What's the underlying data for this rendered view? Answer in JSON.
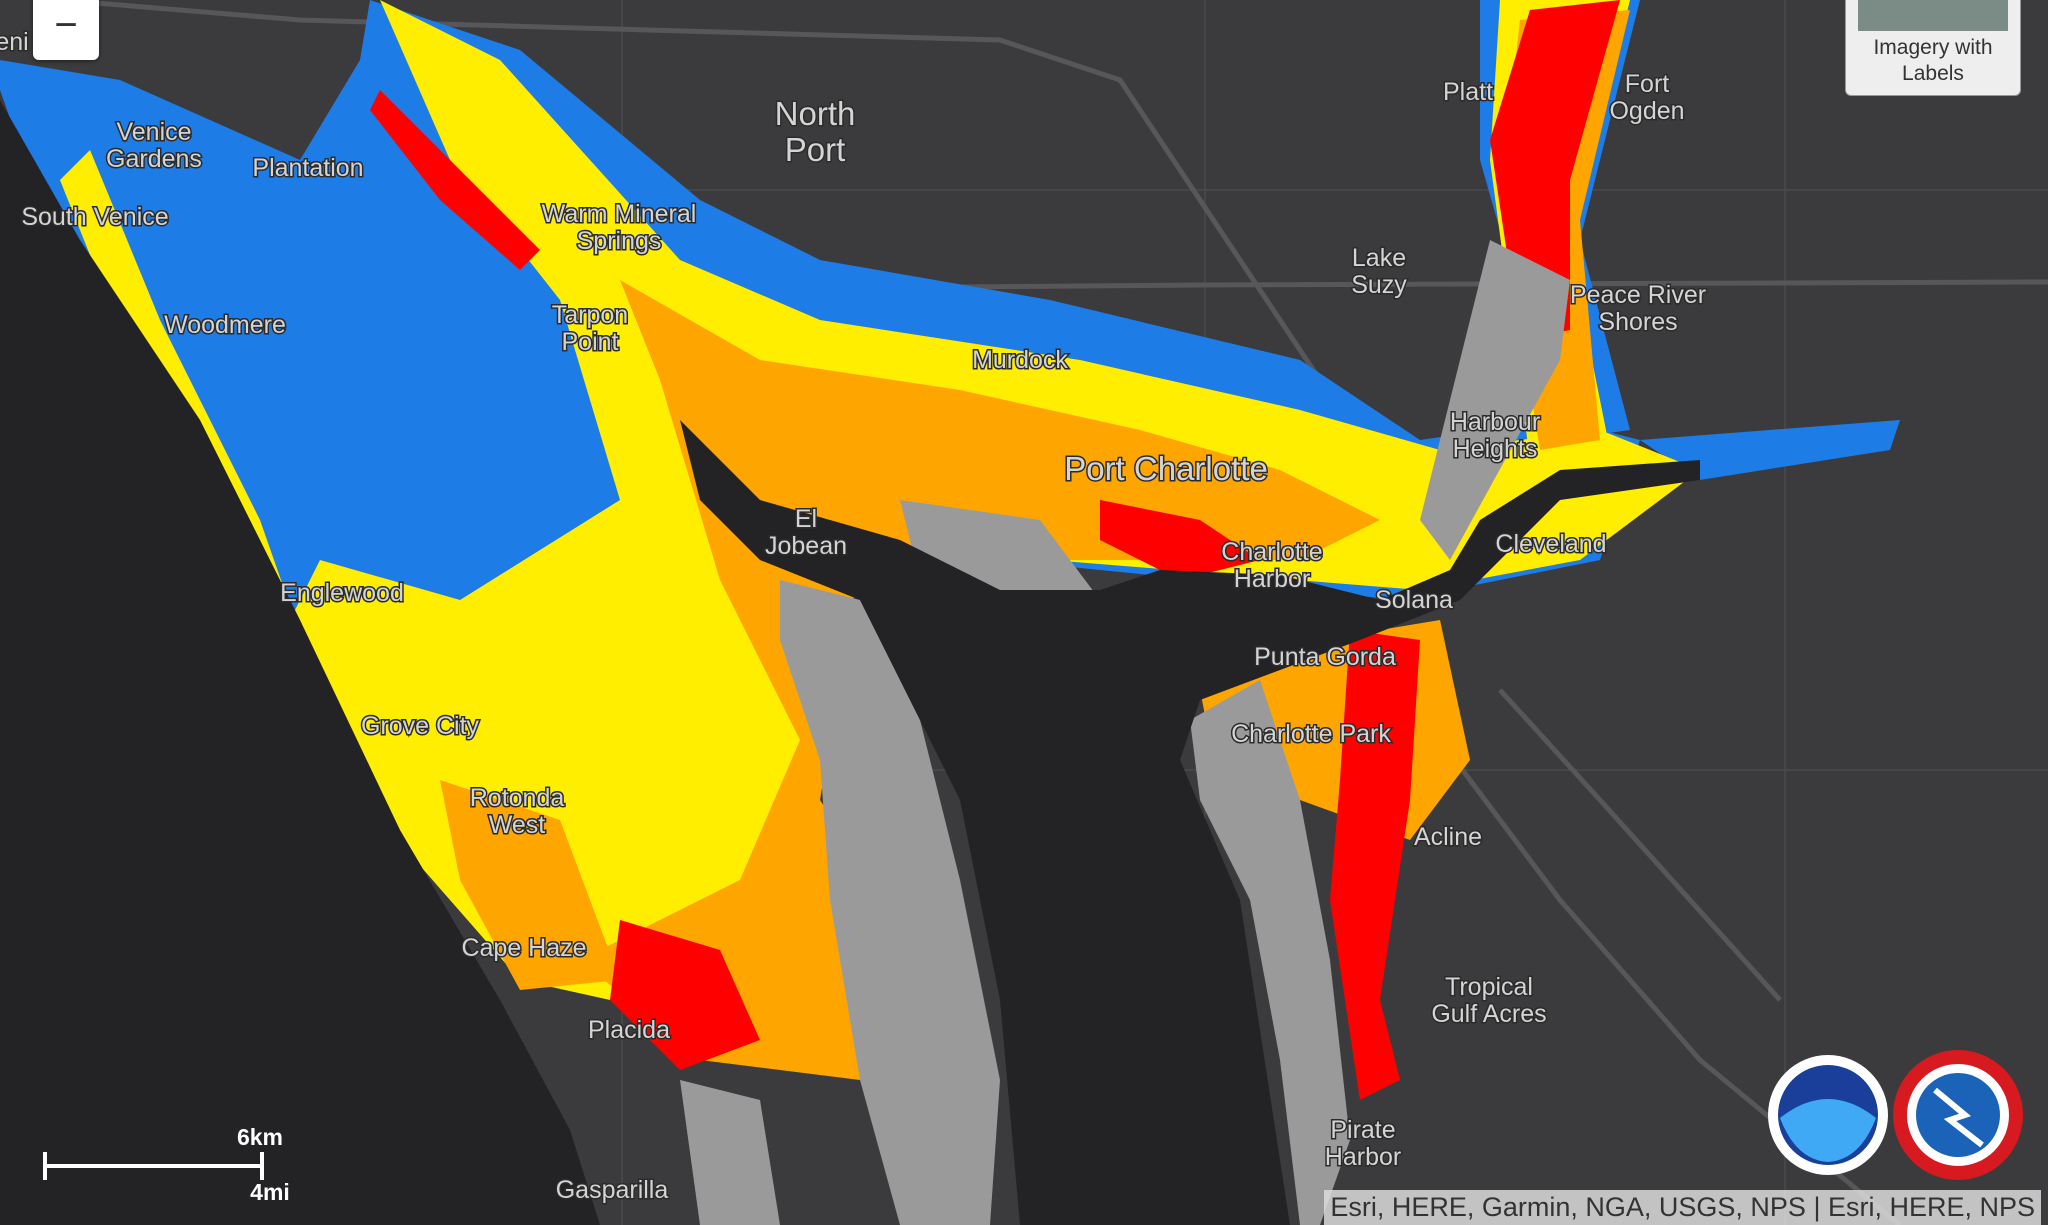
{
  "zoom_out_button": "−",
  "basemap_toggle": {
    "label": "Imagery with Labels"
  },
  "place_labels": [
    [
      "eni"
    ],
    [
      "Venice",
      "Gardens"
    ],
    [
      "Plantation"
    ],
    [
      "South Venice"
    ],
    [
      "North",
      "Port"
    ],
    [
      "Warm Mineral",
      "Springs"
    ],
    [
      "Woodmere"
    ],
    [
      "Tarpon",
      "Point"
    ],
    [
      "Murdock"
    ],
    [
      "Port Charlotte"
    ],
    [
      "El",
      "Jobean"
    ],
    [
      "Englewood"
    ],
    [
      "Charlotte",
      "Harbor"
    ],
    [
      "Solana"
    ],
    [
      "Punta Gorda"
    ],
    [
      "Charlotte Park"
    ],
    [
      "Grove City"
    ],
    [
      "Rotonda",
      "West"
    ],
    [
      "Acline"
    ],
    [
      "Cape Haze"
    ],
    [
      "Placida"
    ],
    [
      "Tropical",
      "Gulf Acres"
    ],
    [
      "Pirate",
      "Harbor"
    ],
    [
      "Gasparilla"
    ],
    [
      "Platt"
    ],
    [
      "Fort",
      "Ogden"
    ],
    [
      "Lake",
      "Suzy"
    ],
    [
      "Peace River",
      "Shores"
    ],
    [
      "Harbour",
      "Heights"
    ],
    [
      "Cleveland"
    ]
  ],
  "scale_bar": {
    "metric": "6km",
    "imperial": "4mi"
  },
  "attribution": "Esri, HERE, Garmin, NGA, USGS, NPS | Esri, HERE, NPS"
}
